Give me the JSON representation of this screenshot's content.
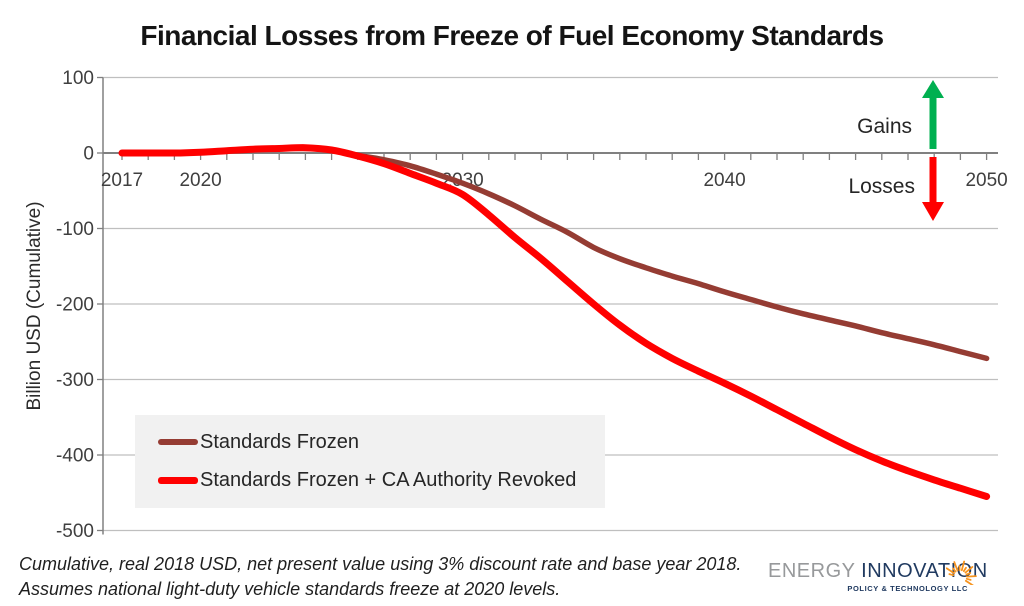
{
  "title": "Financial Losses from Freeze of Fuel Economy Standards",
  "y_axis": {
    "title": "Billion USD (Cumulative)",
    "ticks": [
      100,
      0,
      -100,
      -200,
      -300,
      -400,
      -500
    ]
  },
  "x_axis": {
    "labels": [
      2017,
      2020,
      2030,
      2040,
      2050
    ],
    "min": 2017,
    "max": 2050,
    "minor_tick_interval_years": 1
  },
  "annotations": {
    "gains": {
      "label": "Gains",
      "icon": "up-arrow-icon",
      "color": "#00B050"
    },
    "losses": {
      "label": "Losses",
      "icon": "down-arrow-icon",
      "color": "#FF0000"
    }
  },
  "legend": [
    {
      "label": "Standards Frozen",
      "color": "#953C33",
      "thickness": 6
    },
    {
      "label": "Standards Frozen + CA Authority Revoked",
      "color": "#FF0000",
      "thickness": 7
    }
  ],
  "footnote_lines": [
    "Cumulative, real 2018 USD, net present value using 3% discount rate and base year 2018.",
    "Assumes national light-duty vehicle standards freeze at 2020 levels."
  ],
  "logo": {
    "energy": "ENERGY",
    "innovation": "INNOVATION",
    "tagline": "POLICY & TECHNOLOGY LLC",
    "icon": "starburst-icon"
  },
  "colors": {
    "gridline": "#BFBFBF",
    "axis": "#808080",
    "tick_label": "#3F3F3F",
    "legend_bg": "#F1F1F1",
    "logo_orange": "#F7941E"
  },
  "chart_data": {
    "type": "line",
    "title": "Financial Losses from Freeze of Fuel Economy Standards",
    "xlabel": "",
    "ylabel": "Billion USD (Cumulative)",
    "ylim": [
      -500,
      100
    ],
    "xlim": [
      2017,
      2050
    ],
    "grid": "horizontal",
    "legend_position": "inside-bottom-left",
    "x": [
      2017,
      2018,
      2019,
      2020,
      2021,
      2022,
      2023,
      2024,
      2025,
      2026,
      2027,
      2028,
      2029,
      2030,
      2031,
      2032,
      2033,
      2034,
      2035,
      2036,
      2037,
      2038,
      2039,
      2040,
      2041,
      2042,
      2043,
      2044,
      2045,
      2046,
      2047,
      2048,
      2049,
      2050
    ],
    "series": [
      {
        "name": "Standards Frozen",
        "color": "#953C33",
        "stroke_width": 5.5,
        "values": [
          0,
          0,
          0,
          1,
          3,
          5,
          6,
          6,
          4,
          -3,
          -9,
          -17,
          -28,
          -40,
          -54,
          -70,
          -88,
          -105,
          -125,
          -140,
          -152,
          -163,
          -173,
          -184,
          -194,
          -204,
          -213,
          -221,
          -229,
          -238,
          -246,
          -254,
          -263,
          -272
        ]
      },
      {
        "name": "Standards Frozen + CA Authority Revoked",
        "color": "#FF0000",
        "stroke_width": 7,
        "values": [
          0,
          0,
          0,
          1,
          3,
          5,
          6,
          7,
          4,
          -4,
          -14,
          -27,
          -40,
          -55,
          -82,
          -112,
          -140,
          -170,
          -200,
          -228,
          -252,
          -272,
          -289,
          -305,
          -322,
          -340,
          -358,
          -376,
          -393,
          -408,
          -421,
          -433,
          -444,
          -455
        ]
      }
    ],
    "annotations": [
      {
        "text": "Gains",
        "arrow": "up",
        "color": "#00B050"
      },
      {
        "text": "Losses",
        "arrow": "down",
        "color": "#FF0000"
      }
    ]
  }
}
